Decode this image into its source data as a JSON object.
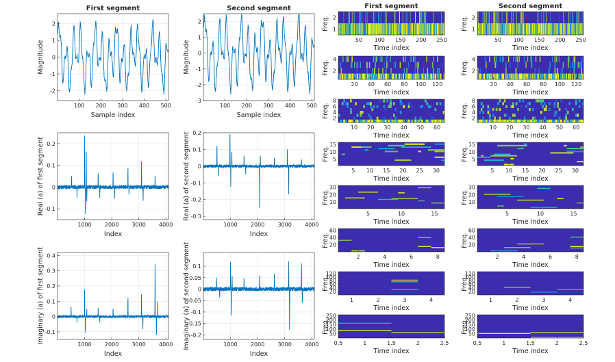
{
  "figure": {
    "background": "#ffffff",
    "line_color": "#0072BD"
  },
  "chart_data": [
    {
      "id": "mag1",
      "type": "line",
      "title": "First segment",
      "xlabel": "Sample index",
      "ylabel": "Magnitude",
      "xlim": [
        0,
        512
      ],
      "ylim": [
        -2.6,
        2.6
      ],
      "xticks": [
        100,
        200,
        300,
        400,
        500
      ],
      "yticks": [
        -2,
        -1,
        0,
        1,
        2
      ],
      "signal": "oscillation",
      "n_points": 512,
      "amplitude": 2.5
    },
    {
      "id": "mag2",
      "type": "line",
      "title": "Second segment",
      "xlabel": "Sample index",
      "ylabel": "Magnitude",
      "xlim": [
        0,
        512
      ],
      "ylim": [
        -3.0,
        2.5
      ],
      "xticks": [
        100,
        200,
        300,
        400,
        500
      ],
      "yticks": [
        -3,
        -2,
        -1,
        0,
        1,
        2
      ],
      "signal": "oscillation",
      "n_points": 512,
      "amplitude": 2.9
    },
    {
      "id": "re1",
      "type": "line",
      "title": "",
      "xlabel": "Index",
      "ylabel": "Real (a) of first segment",
      "xlim": [
        0,
        4096
      ],
      "ylim": [
        -0.15,
        0.25
      ],
      "xticks": [
        1000,
        2000,
        3000,
        4000
      ],
      "yticks": [
        -0.1,
        0,
        0.1,
        0.2
      ],
      "signal": "sparse_spikes",
      "n_points": 1200,
      "spikes": [
        [
          520,
          0.06
        ],
        [
          720,
          -0.05
        ],
        [
          1000,
          0.24
        ],
        [
          1030,
          -0.14
        ],
        [
          1060,
          0.2
        ],
        [
          1080,
          -0.08
        ],
        [
          1500,
          0.08
        ],
        [
          1560,
          -0.05
        ],
        [
          2050,
          0.08
        ],
        [
          2100,
          -0.06
        ],
        [
          2600,
          0.1
        ],
        [
          2640,
          -0.04
        ],
        [
          3100,
          0.13
        ],
        [
          3160,
          -0.07
        ],
        [
          3600,
          0.06
        ]
      ]
    },
    {
      "id": "re2",
      "type": "line",
      "title": "",
      "xlabel": "Index",
      "ylabel": "Real (a) of second segment",
      "xlim": [
        0,
        4096
      ],
      "ylim": [
        -0.32,
        0.2
      ],
      "xticks": [
        1000,
        2000,
        3000,
        4000
      ],
      "yticks": [
        -0.3,
        -0.2,
        -0.1,
        0,
        0.1,
        0.2
      ],
      "signal": "sparse_spikes",
      "n_points": 1200,
      "spikes": [
        [
          500,
          0.15
        ],
        [
          560,
          -0.06
        ],
        [
          980,
          0.2
        ],
        [
          1010,
          -0.13
        ],
        [
          1050,
          0.1
        ],
        [
          1500,
          0.08
        ],
        [
          1560,
          -0.05
        ],
        [
          2080,
          -0.3
        ],
        [
          2100,
          0.07
        ],
        [
          2620,
          0.06
        ],
        [
          3100,
          0.11
        ],
        [
          3150,
          -0.18
        ],
        [
          3620,
          0.05
        ]
      ]
    },
    {
      "id": "im1",
      "type": "line",
      "title": "",
      "xlabel": "Index",
      "ylabel": "Imaginary (a) of first segment",
      "xlim": [
        0,
        4096
      ],
      "ylim": [
        -0.15,
        0.42
      ],
      "xticks": [
        1000,
        2000,
        3000,
        4000
      ],
      "yticks": [
        -0.1,
        0,
        0.1,
        0.2,
        0.3,
        0.4
      ],
      "signal": "sparse_spikes",
      "n_points": 1200,
      "spikes": [
        [
          500,
          0.08
        ],
        [
          720,
          -0.04
        ],
        [
          1000,
          0.18
        ],
        [
          1030,
          -0.12
        ],
        [
          1080,
          0.06
        ],
        [
          1500,
          0.07
        ],
        [
          1560,
          -0.04
        ],
        [
          2050,
          0.06
        ],
        [
          2600,
          0.14
        ],
        [
          3100,
          0.16
        ],
        [
          3150,
          -0.09
        ],
        [
          3600,
          0.4
        ],
        [
          3650,
          -0.14
        ],
        [
          3700,
          0.1
        ]
      ]
    },
    {
      "id": "im2",
      "type": "line",
      "title": "",
      "xlabel": "Index",
      "ylabel": "Imaginary (a) of second segment",
      "xlim": [
        0,
        4096
      ],
      "ylim": [
        -0.22,
        0.16
      ],
      "xticks": [
        1000,
        2000,
        3000,
        4000
      ],
      "yticks": [
        -0.2,
        -0.15,
        -0.1,
        -0.05,
        0,
        0.05,
        0.1
      ],
      "signal": "sparse_spikes",
      "n_points": 1200,
      "spikes": [
        [
          480,
          0.06
        ],
        [
          600,
          -0.04
        ],
        [
          1000,
          0.12
        ],
        [
          1030,
          -0.13
        ],
        [
          1060,
          0.07
        ],
        [
          1500,
          0.06
        ],
        [
          2080,
          0.07
        ],
        [
          2620,
          0.08
        ],
        [
          3150,
          0.13
        ],
        [
          3180,
          -0.21
        ],
        [
          3620,
          0.14
        ],
        [
          3650,
          -0.07
        ]
      ]
    },
    {
      "id": "s1_1",
      "type": "heatmap",
      "title": "First segment",
      "xlabel": "Time index",
      "ylabel": "Freq.",
      "xlim": [
        0.5,
        256.5
      ],
      "ylim": [
        0.5,
        2.5
      ],
      "xticks": [
        50,
        100,
        150,
        200,
        250
      ],
      "yticks": [
        1,
        2
      ],
      "rows": 2,
      "cols": 256,
      "seed": 11
    },
    {
      "id": "s1_2",
      "type": "heatmap",
      "title": "Second segment",
      "xlabel": "Time index",
      "ylabel": "Freq.",
      "xlim": [
        0.5,
        256.5
      ],
      "ylim": [
        0.5,
        2.5
      ],
      "xticks": [
        50,
        100,
        150,
        200,
        250
      ],
      "yticks": [
        1,
        2
      ],
      "rows": 2,
      "cols": 256,
      "seed": 12
    },
    {
      "id": "s2_1",
      "type": "heatmap",
      "title": "",
      "xlabel": "Time index",
      "ylabel": "Freq.",
      "xlim": [
        0.5,
        128.5
      ],
      "ylim": [
        0.5,
        4.5
      ],
      "xticks": [
        20,
        40,
        60,
        80,
        100,
        120
      ],
      "yticks": [
        2,
        4
      ],
      "rows": 4,
      "cols": 128,
      "seed": 21
    },
    {
      "id": "s2_2",
      "type": "heatmap",
      "title": "",
      "xlabel": "Time index",
      "ylabel": "Freq.",
      "xlim": [
        0.5,
        128.5
      ],
      "ylim": [
        0.5,
        4.5
      ],
      "xticks": [
        20,
        40,
        60,
        80,
        100,
        120
      ],
      "yticks": [
        2,
        4
      ],
      "rows": 4,
      "cols": 128,
      "seed": 22
    },
    {
      "id": "s3_1",
      "type": "heatmap",
      "title": "",
      "xlabel": "Time index",
      "ylabel": "Freq.",
      "xlim": [
        0.5,
        64.5
      ],
      "ylim": [
        0.5,
        8.5
      ],
      "xticks": [
        10,
        20,
        30,
        40,
        50,
        60
      ],
      "yticks": [
        2,
        4,
        6,
        8
      ],
      "rows": 8,
      "cols": 64,
      "seed": 31
    },
    {
      "id": "s3_2",
      "type": "heatmap",
      "title": "",
      "xlabel": "Time index",
      "ylabel": "Freq.",
      "xlim": [
        0.5,
        64.5
      ],
      "ylim": [
        0.5,
        8.5
      ],
      "xticks": [
        10,
        20,
        30,
        40,
        50,
        60
      ],
      "yticks": [
        2,
        4,
        6,
        8
      ],
      "rows": 8,
      "cols": 64,
      "seed": 32
    },
    {
      "id": "s4_1",
      "type": "heatmap",
      "title": "",
      "xlabel": "Time index",
      "ylabel": "Freq.",
      "xlim": [
        0.5,
        32.5
      ],
      "ylim": [
        0.5,
        16.5
      ],
      "xticks": [
        5,
        10,
        15,
        20,
        25,
        30
      ],
      "yticks": [
        5,
        10,
        15
      ],
      "rows": 16,
      "cols": 32,
      "seed": 41
    },
    {
      "id": "s4_2",
      "type": "heatmap",
      "title": "",
      "xlabel": "Time index",
      "ylabel": "Freq.",
      "xlim": [
        0.5,
        32.5
      ],
      "ylim": [
        0.5,
        16.5
      ],
      "xticks": [
        5,
        10,
        15,
        20,
        25,
        30
      ],
      "yticks": [
        5,
        10,
        15
      ],
      "rows": 16,
      "cols": 32,
      "seed": 42
    },
    {
      "id": "s5_1",
      "type": "heatmap",
      "title": "",
      "xlabel": "Time index",
      "ylabel": "Freq.",
      "xlim": [
        0.5,
        16.5
      ],
      "ylim": [
        0.5,
        32.5
      ],
      "xticks": [
        5,
        10,
        15
      ],
      "yticks": [
        10,
        20,
        30
      ],
      "rows": 32,
      "cols": 16,
      "seed": 51
    },
    {
      "id": "s5_2",
      "type": "heatmap",
      "title": "",
      "xlabel": "Time index",
      "ylabel": "Freq.",
      "xlim": [
        0.5,
        16.5
      ],
      "ylim": [
        0.5,
        32.5
      ],
      "xticks": [
        5,
        10,
        15
      ],
      "yticks": [
        10,
        20,
        30
      ],
      "rows": 32,
      "cols": 16,
      "seed": 52
    },
    {
      "id": "s6_1",
      "type": "heatmap",
      "title": "",
      "xlabel": "Time index",
      "ylabel": "Freq.",
      "xlim": [
        0.5,
        8.5
      ],
      "ylim": [
        0.5,
        64.5
      ],
      "xticks": [
        2,
        4,
        6,
        8
      ],
      "yticks": [
        20,
        40,
        60
      ],
      "rows": 64,
      "cols": 8,
      "seed": 61
    },
    {
      "id": "s6_2",
      "type": "heatmap",
      "title": "",
      "xlabel": "Time index",
      "ylabel": "Freq.",
      "xlim": [
        0.5,
        8.5
      ],
      "ylim": [
        0.5,
        64.5
      ],
      "xticks": [
        2,
        4,
        6,
        8
      ],
      "yticks": [
        20,
        40,
        60
      ],
      "rows": 64,
      "cols": 8,
      "seed": 62
    },
    {
      "id": "s7_1",
      "type": "heatmap",
      "title": "",
      "xlabel": "Time index",
      "ylabel": "Freq.",
      "xlim": [
        0.5,
        4.5
      ],
      "ylim": [
        0.5,
        128.5
      ],
      "xticks": [
        1,
        2,
        3,
        4
      ],
      "yticks": [
        20,
        40,
        60,
        80,
        100,
        120
      ],
      "rows": 128,
      "cols": 4,
      "seed": 71
    },
    {
      "id": "s7_2",
      "type": "heatmap",
      "title": "",
      "xlabel": "Time index",
      "ylabel": "Freq.",
      "xlim": [
        0.5,
        4.5
      ],
      "ylim": [
        0.5,
        128.5
      ],
      "xticks": [
        1,
        2,
        3,
        4
      ],
      "yticks": [
        20,
        40,
        60,
        80,
        100,
        120
      ],
      "rows": 128,
      "cols": 4,
      "seed": 72
    },
    {
      "id": "s8_1",
      "type": "heatmap",
      "title": "",
      "xlabel": "Time index",
      "ylabel": "Freq.",
      "xlim": [
        0.5,
        2.5
      ],
      "ylim": [
        0.5,
        256.5
      ],
      "xticks": [
        0.5,
        1,
        1.5,
        2,
        2.5
      ],
      "yticks": [
        50,
        100,
        150,
        200,
        250
      ],
      "rows": 256,
      "cols": 2,
      "seed": 81
    },
    {
      "id": "s8_2",
      "type": "heatmap",
      "title": "",
      "xlabel": "Time index",
      "ylabel": "Freq.",
      "xlim": [
        0.5,
        2.5
      ],
      "ylim": [
        0.5,
        256.5
      ],
      "xticks": [
        0.5,
        1,
        1.5,
        2,
        2.5
      ],
      "yticks": [
        50,
        100,
        150,
        200,
        250
      ],
      "rows": 256,
      "cols": 2,
      "seed": 82
    }
  ]
}
